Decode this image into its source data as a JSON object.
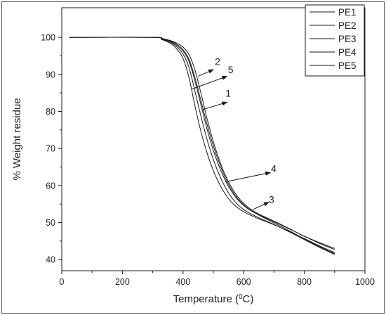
{
  "chart_data": {
    "type": "line",
    "xlabel_main": "Temperature (",
    "xlabel_sup": "0",
    "xlabel_end": "C)",
    "ylabel": "% Weight residue",
    "xlim": [
      0,
      1000
    ],
    "ylim": [
      37,
      108
    ],
    "x_ticks": [
      0,
      200,
      400,
      600,
      800,
      1000
    ],
    "y_ticks": [
      40,
      50,
      60,
      70,
      80,
      90,
      100
    ],
    "legend_position": "top-right",
    "grid": false,
    "line_color": "#1a1a1a",
    "series": [
      {
        "name": "PE1",
        "x": [
          25,
          300,
          330,
          360,
          380,
          400,
          420,
          440,
          460,
          480,
          500,
          520,
          540,
          560,
          580,
          600,
          620,
          650,
          700,
          750,
          800,
          850,
          900
        ],
        "y": [
          100,
          100,
          99.6,
          98.8,
          97.8,
          96.3,
          93.5,
          88.0,
          81.5,
          75.0,
          69.5,
          65.0,
          61.3,
          58.4,
          56.2,
          54.6,
          53.4,
          52.0,
          49.9,
          47.8,
          45.6,
          43.5,
          41.6
        ]
      },
      {
        "name": "PE2",
        "x": [
          25,
          300,
          330,
          360,
          380,
          400,
          420,
          440,
          460,
          480,
          500,
          520,
          540,
          560,
          580,
          600,
          620,
          650,
          700,
          750,
          800,
          850,
          900
        ],
        "y": [
          100,
          100,
          99.4,
          98.3,
          96.8,
          94.3,
          89.0,
          81.2,
          74.3,
          68.6,
          64.0,
          60.4,
          57.6,
          55.5,
          54.0,
          52.9,
          52.1,
          51.0,
          49.4,
          47.6,
          45.7,
          43.7,
          41.9
        ]
      },
      {
        "name": "PE3",
        "x": [
          25,
          300,
          330,
          360,
          380,
          400,
          420,
          440,
          460,
          480,
          500,
          520,
          540,
          560,
          580,
          600,
          620,
          650,
          700,
          750,
          800,
          850,
          900
        ],
        "y": [
          100,
          100,
          99.7,
          99.0,
          98.1,
          96.7,
          94.0,
          88.9,
          82.6,
          76.3,
          70.7,
          66.0,
          62.0,
          58.9,
          56.5,
          54.8,
          53.5,
          52.1,
          50.2,
          48.3,
          46.3,
          44.4,
          42.7
        ]
      },
      {
        "name": "PE4",
        "x": [
          25,
          300,
          330,
          360,
          380,
          400,
          420,
          440,
          460,
          480,
          500,
          520,
          540,
          560,
          580,
          600,
          620,
          650,
          700,
          750,
          800,
          850,
          900
        ],
        "y": [
          100,
          100,
          99.7,
          99.1,
          98.4,
          97.4,
          95.3,
          91.0,
          84.6,
          77.8,
          71.8,
          66.8,
          62.7,
          59.5,
          57.0,
          55.2,
          53.8,
          52.3,
          50.4,
          48.4,
          46.3,
          44.6,
          43.0
        ]
      },
      {
        "name": "PE5",
        "x": [
          25,
          300,
          330,
          360,
          380,
          400,
          420,
          440,
          460,
          480,
          500,
          520,
          540,
          560,
          580,
          600,
          620,
          650,
          700,
          750,
          800,
          850,
          900
        ],
        "y": [
          100,
          100,
          99.5,
          98.6,
          97.4,
          95.5,
          91.8,
          85.2,
          78.4,
          72.2,
          67.0,
          62.8,
          59.4,
          56.8,
          54.9,
          53.5,
          52.5,
          51.3,
          49.5,
          47.5,
          45.4,
          43.3,
          41.4
        ]
      }
    ],
    "annotations": [
      {
        "text": "2",
        "from": [
          450,
          89.5
        ],
        "to": [
          500,
          91.3
        ],
        "label_at": [
          505,
          92.5
        ]
      },
      {
        "text": "5",
        "from": [
          428,
          86.0
        ],
        "to": [
          545,
          89.5
        ],
        "label_at": [
          548,
          90.3
        ]
      },
      {
        "text": "1",
        "from": [
          465,
          80.5
        ],
        "to": [
          545,
          82.5
        ],
        "label_at": [
          540,
          84.0
        ]
      },
      {
        "text": "4",
        "from": [
          540,
          61.0
        ],
        "to": [
          688,
          63.5
        ],
        "label_at": [
          690,
          63.7
        ]
      },
      {
        "text": "3",
        "from": [
          630,
          53.5
        ],
        "to": [
          683,
          55.5
        ],
        "label_at": [
          683,
          55.3
        ]
      }
    ]
  }
}
